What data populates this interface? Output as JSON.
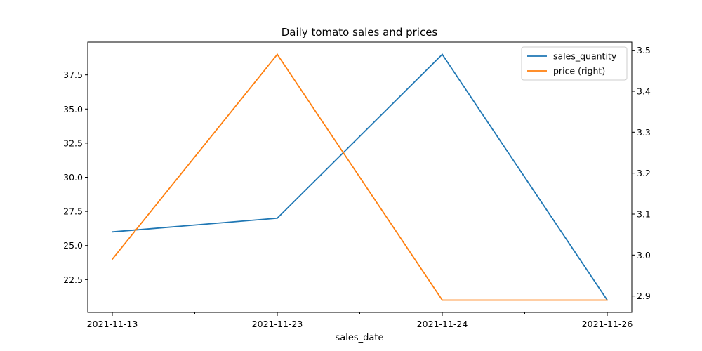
{
  "chart_data": {
    "type": "line",
    "title": "Daily tomato sales and prices",
    "xlabel": "sales_date",
    "ylabel": "",
    "y2label": "",
    "categories": [
      "2021-11-13",
      "2021-11-23",
      "2021-11-24",
      "2021-11-26"
    ],
    "series": [
      {
        "name": "sales_quantity",
        "axis": "left",
        "color": "#1f77b4",
        "values": [
          26.0,
          27.0,
          39.0,
          21.0
        ]
      },
      {
        "name": "price (right)",
        "axis": "right",
        "color": "#ff7f0e",
        "values": [
          2.99,
          3.49,
          2.89,
          2.89
        ]
      }
    ],
    "ylim": [
      20.1,
      39.9
    ],
    "y2lim": [
      2.86,
      3.52
    ],
    "yticks": [
      "22.5",
      "25.0",
      "27.5",
      "30.0",
      "32.5",
      "35.0",
      "37.5"
    ],
    "y2ticks": [
      "2.9",
      "3.0",
      "3.1",
      "3.2",
      "3.3",
      "3.4",
      "3.5"
    ],
    "grid": false,
    "legend_position": "top-right"
  }
}
